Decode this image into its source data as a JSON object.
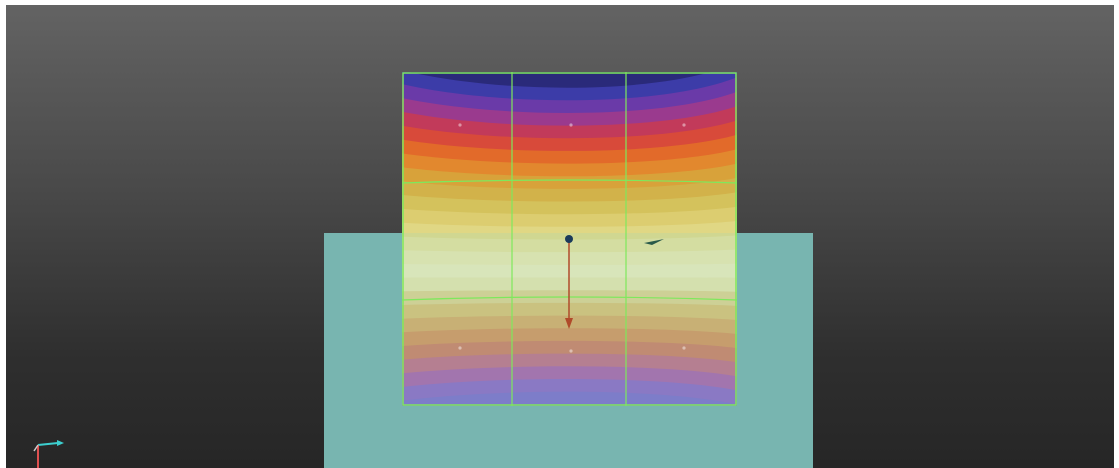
{
  "viewport": {
    "background_top": "#636363",
    "background_bottom": "#262626"
  },
  "ground_plane": {
    "color": "#78b5b0"
  },
  "contour_plot": {
    "colormap": "rainbow",
    "band_colors": [
      "#2a2a7a",
      "#3c3ca8",
      "#6a3aa8",
      "#9a3a8e",
      "#c23a5a",
      "#d84a3a",
      "#e26a2a",
      "#e2882e",
      "#d8a23a",
      "#d2b24a",
      "#d4c25c",
      "#dccd70",
      "#e0d784",
      "#e4de98",
      "#e8e4aa",
      "#eae8b6",
      "#e4e2a8",
      "#dccf8a",
      "#d8bd70",
      "#d6a862",
      "#d49058",
      "#cc7a60",
      "#bf6c84",
      "#a860a8",
      "#8a64c2",
      "#7a6ac8"
    ],
    "mesh_color": "#7ee85c"
  },
  "mesh": {
    "columns": 3,
    "rows": 3
  },
  "load_arrow": {
    "color": "#b04a2a",
    "node_color": "#1a3a5a"
  },
  "axis_triad": {
    "x_color": "#3ccfcf",
    "y_color": "#e05050"
  }
}
